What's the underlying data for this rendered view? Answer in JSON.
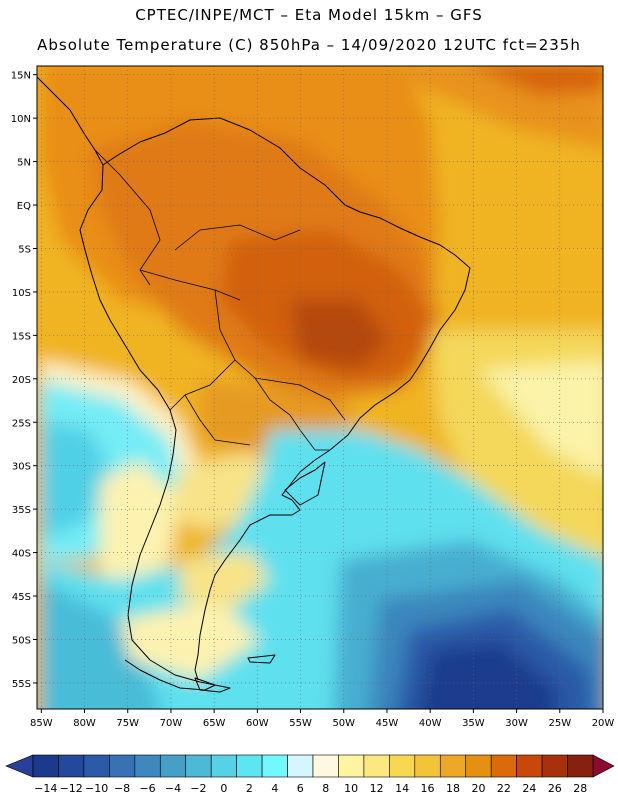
{
  "header": {
    "line1": "CPTEC/INPE/MCT –  Eta Model 15km – GFS",
    "line2": "Absolute Temperature (C) 850hPa – 14/09/2020 12UTC fct=235h"
  },
  "map": {
    "lat_labels": [
      "15N",
      "10N",
      "5N",
      "EQ",
      "5S",
      "10S",
      "15S",
      "20S",
      "25S",
      "30S",
      "35S",
      "40S",
      "45S",
      "50S",
      "55S"
    ],
    "lon_labels": [
      "85W",
      "80W",
      "75W",
      "70W",
      "65W",
      "60W",
      "55W",
      "50W",
      "45W",
      "40W",
      "35W",
      "30W",
      "25W",
      "20W"
    ],
    "lat_values": [
      15,
      10,
      5,
      0,
      -5,
      -10,
      -15,
      -20,
      -25,
      -30,
      -35,
      -40,
      -45,
      -50,
      -55
    ],
    "lon_values": [
      -85,
      -80,
      -75,
      -70,
      -65,
      -60,
      -55,
      -50,
      -45,
      -40,
      -35,
      -30,
      -25,
      -20
    ],
    "extent": {
      "lon_min": -85.5,
      "lon_max": -20,
      "lat_min": -58,
      "lat_max": 16
    }
  },
  "colorbar": {
    "labels": [
      "-14",
      "-12",
      "-10",
      "-8",
      "-6",
      "-4",
      "-2",
      "0",
      "2",
      "4",
      "6",
      "8",
      "10",
      "12",
      "14",
      "16",
      "18",
      "20",
      "22",
      "24",
      "26",
      "28"
    ],
    "colors": [
      "#1c3a8c",
      "#23489c",
      "#2b5aa8",
      "#3871b4",
      "#3f88bd",
      "#45a0c8",
      "#4cb9d6",
      "#55d2e6",
      "#5ce6f2",
      "#74f8ff",
      "#d6f6ff",
      "#fff8e0",
      "#fff5a0",
      "#fce880",
      "#f8d850",
      "#f3c33a",
      "#eda828",
      "#e69012",
      "#db6a0a",
      "#c8480a",
      "#a8300c",
      "#86200f"
    ],
    "under_color": "#2a3f97",
    "over_color": "#8e0a30"
  }
}
